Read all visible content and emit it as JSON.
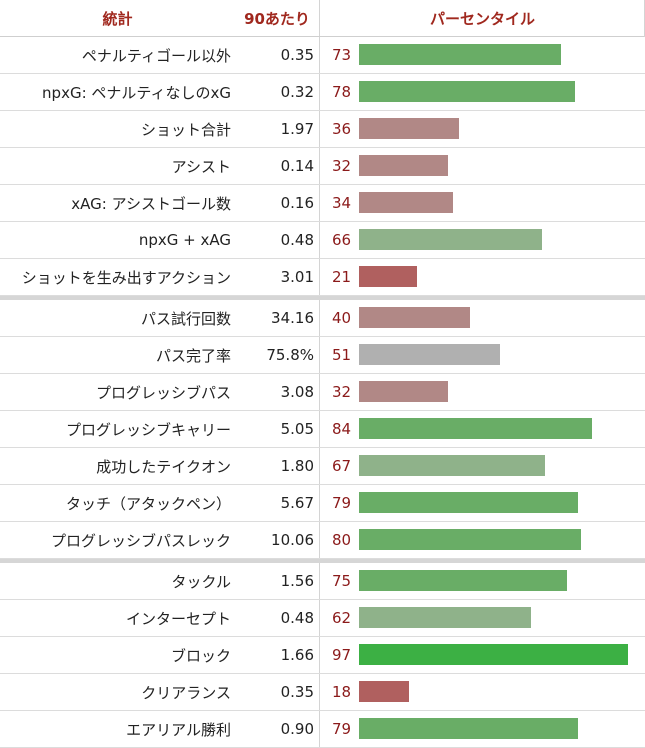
{
  "headers": {
    "stat": "統計",
    "per90": "90あたり",
    "percentile": "パーセンタイル"
  },
  "colors": {
    "header_text": "#a0281e",
    "percentile_text": "#8b1a1a",
    "bar_high": "#3cb044",
    "bar_mid_high": "#69ad66",
    "bar_mid": "#8fb28a",
    "bar_neutral": "#b0b0b0",
    "bar_mid_low": "#b18886",
    "bar_low": "#b0605f"
  },
  "chart_data": {
    "type": "table",
    "columns": [
      "統計",
      "90あたり",
      "パーセンタイル"
    ],
    "groups": [
      {
        "rows": [
          {
            "stat": "ペナルティゴール以外",
            "per90": "0.35",
            "percentile": 73
          },
          {
            "stat": "npxG: ペナルティなしのxG",
            "per90": "0.32",
            "percentile": 78
          },
          {
            "stat": "ショット合計",
            "per90": "1.97",
            "percentile": 36
          },
          {
            "stat": "アシスト",
            "per90": "0.14",
            "percentile": 32
          },
          {
            "stat": "xAG: アシストゴール数",
            "per90": "0.16",
            "percentile": 34
          },
          {
            "stat": "npxG + xAG",
            "per90": "0.48",
            "percentile": 66
          },
          {
            "stat": "ショットを生み出すアクション",
            "per90": "3.01",
            "percentile": 21
          }
        ]
      },
      {
        "rows": [
          {
            "stat": "パス試行回数",
            "per90": "34.16",
            "percentile": 40
          },
          {
            "stat": "パス完了率",
            "per90": "75.8%",
            "percentile": 51
          },
          {
            "stat": "プログレッシブパス",
            "per90": "3.08",
            "percentile": 32
          },
          {
            "stat": "プログレッシブキャリー",
            "per90": "5.05",
            "percentile": 84
          },
          {
            "stat": "成功したテイクオン",
            "per90": "1.80",
            "percentile": 67
          },
          {
            "stat": "タッチ（アタックペン）",
            "per90": "5.67",
            "percentile": 79
          },
          {
            "stat": "プログレッシブパスレック",
            "per90": "10.06",
            "percentile": 80
          }
        ]
      },
      {
        "rows": [
          {
            "stat": "タックル",
            "per90": "1.56",
            "percentile": 75
          },
          {
            "stat": "インターセプト",
            "per90": "0.48",
            "percentile": 62
          },
          {
            "stat": "ブロック",
            "per90": "1.66",
            "percentile": 97
          },
          {
            "stat": "クリアランス",
            "per90": "0.35",
            "percentile": 18
          },
          {
            "stat": "エアリアル勝利",
            "per90": "0.90",
            "percentile": 79
          }
        ]
      }
    ],
    "percentile_range": [
      0,
      100
    ]
  }
}
